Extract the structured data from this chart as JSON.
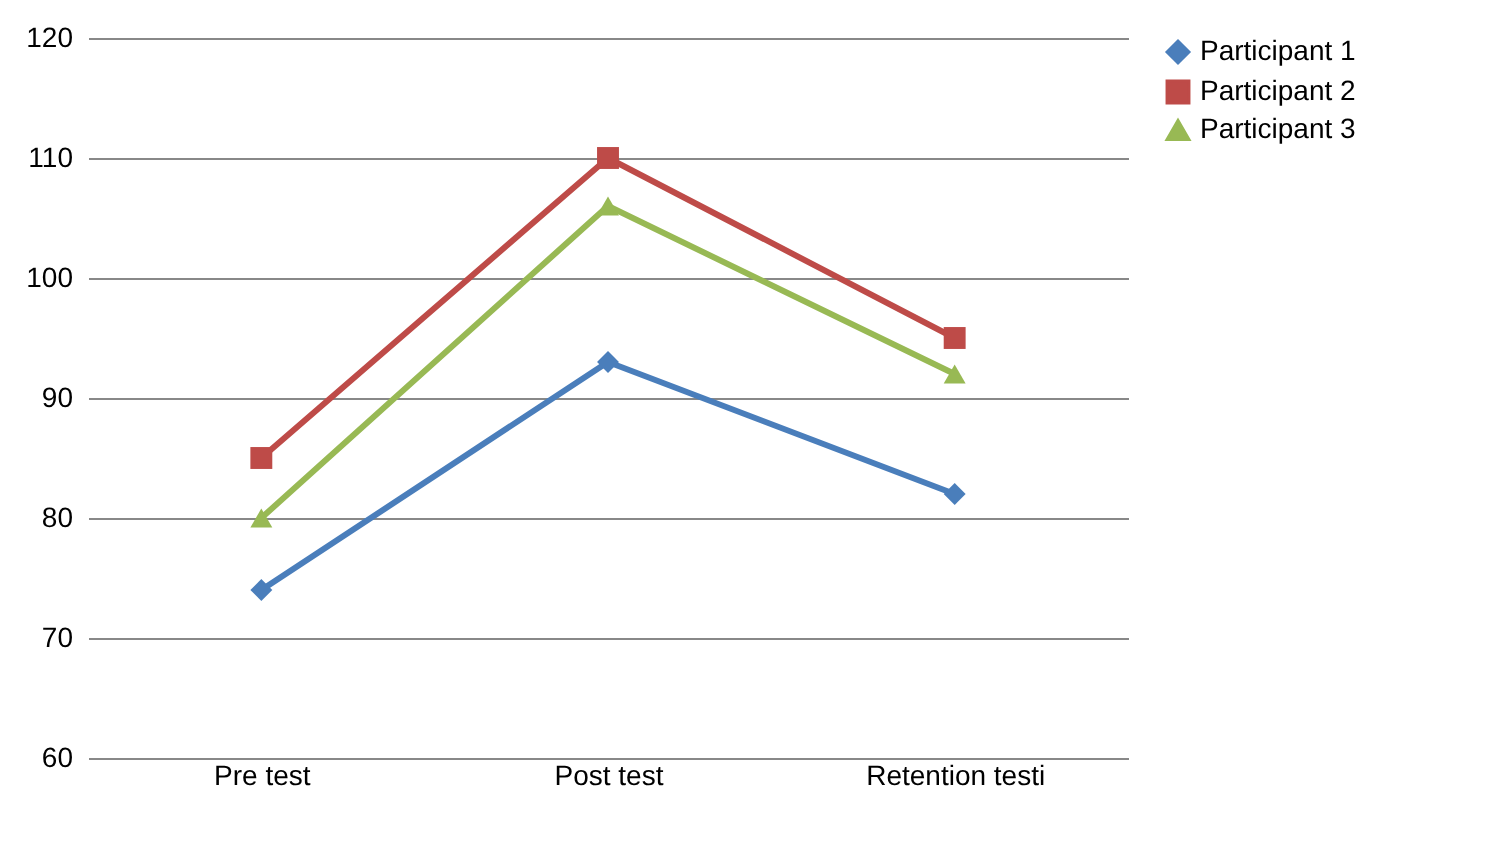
{
  "chart_data": {
    "type": "line",
    "categories": [
      "Pre test",
      "Post test",
      "Retention testi"
    ],
    "series": [
      {
        "name": "Participant 1",
        "color": "#4a7ebb",
        "marker": "diamond",
        "values": [
          74,
          93,
          82
        ]
      },
      {
        "name": "Participant 2",
        "color": "#be4b48",
        "marker": "square",
        "values": [
          85,
          110,
          95
        ]
      },
      {
        "name": "Participant 3",
        "color": "#98b954",
        "marker": "triangle",
        "values": [
          80,
          106,
          92
        ]
      }
    ],
    "ylim": [
      60,
      120
    ],
    "yticks": [
      60,
      70,
      80,
      90,
      100,
      110,
      120
    ],
    "grid": "y",
    "legend": "right",
    "line_style": "solid"
  }
}
